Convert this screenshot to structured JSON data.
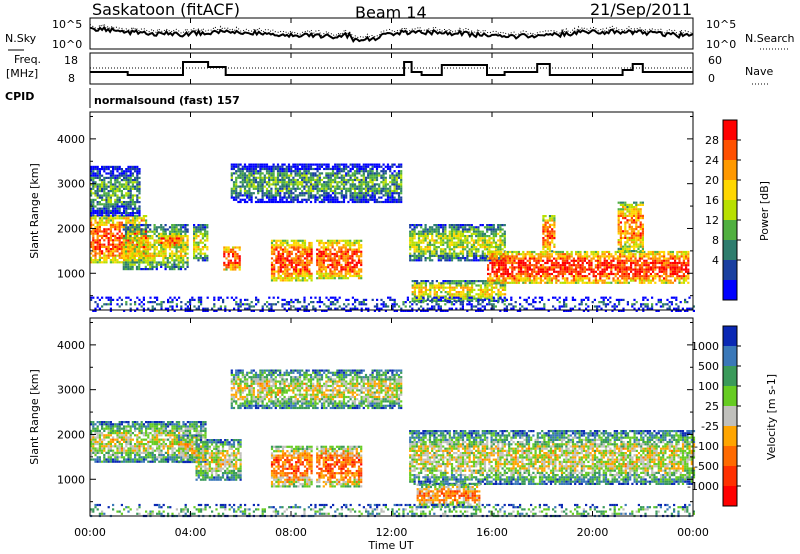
{
  "header": {
    "station": "Saskatoon (fitACF)",
    "beam": "Beam 14",
    "date": "21/Sep/2011"
  },
  "noise_panel": {
    "left_label": "N.Sky",
    "left_ticks": [
      "10^5",
      "10^0"
    ],
    "right_label": "N.Search",
    "right_ticks": [
      "10^5",
      "10^0"
    ]
  },
  "freq_panel": {
    "left_label_1": "Freq.",
    "left_label_2": "[MHz]",
    "left_ticks": [
      "18",
      "8"
    ],
    "right_label": "Nave",
    "right_ticks": [
      "60",
      "0"
    ]
  },
  "cpid": {
    "label": "CPID",
    "value": "normalsound (fast) 157"
  },
  "x_axis": {
    "label": "Time UT",
    "ticks": [
      "00:00",
      "04:00",
      "08:00",
      "12:00",
      "16:00",
      "20:00",
      "00:00"
    ]
  },
  "colors": {
    "frame": "#000000",
    "gray_scatter": "#c0c0bc"
  },
  "chart_data": [
    {
      "type": "heatmap",
      "name": "power",
      "ylabel": "Slant Range [km]",
      "yticks": [
        "4000",
        "3000",
        "2000",
        "1000"
      ],
      "ylim": [
        180,
        4600
      ],
      "xlim_hours": [
        0,
        24
      ],
      "colorbar": {
        "label": "Power [dB]",
        "ticks": [
          "28",
          "24",
          "20",
          "16",
          "12",
          "8",
          "4"
        ],
        "colors": [
          "#ff0000",
          "#ff5000",
          "#ff9900",
          "#ffd700",
          "#b8e000",
          "#50b040",
          "#2e7d6e",
          "#1a3fa0",
          "#0000ff"
        ]
      },
      "regions": [
        {
          "t": [
            0.0,
            2.2
          ],
          "r": [
            1250,
            2300
          ],
          "level": 0.85
        },
        {
          "t": [
            0.0,
            2.0
          ],
          "r": [
            2300,
            3400
          ],
          "level": 0.35
        },
        {
          "t": [
            1.3,
            3.9
          ],
          "r": [
            1100,
            2100
          ],
          "level": 0.55
        },
        {
          "t": [
            2.8,
            3.6
          ],
          "r": [
            1600,
            1900
          ],
          "level": 0.8
        },
        {
          "t": [
            4.1,
            4.7
          ],
          "r": [
            1300,
            2100
          ],
          "level": 0.55
        },
        {
          "t": [
            5.3,
            6.0
          ],
          "r": [
            1100,
            1600
          ],
          "level": 0.9
        },
        {
          "t": [
            5.6,
            12.4
          ],
          "r": [
            2600,
            3450
          ],
          "level": 0.35
        },
        {
          "t": [
            7.2,
            8.8
          ],
          "r": [
            850,
            1750
          ],
          "level": 0.85
        },
        {
          "t": [
            9.0,
            10.8
          ],
          "r": [
            900,
            1750
          ],
          "level": 0.85
        },
        {
          "t": [
            12.7,
            16.5
          ],
          "r": [
            1300,
            2100
          ],
          "level": 0.5
        },
        {
          "t": [
            12.8,
            16.5
          ],
          "r": [
            400,
            850
          ],
          "level": 0.6
        },
        {
          "t": [
            15.8,
            23.8
          ],
          "r": [
            800,
            1500
          ],
          "level": 0.9
        },
        {
          "t": [
            18.0,
            18.5
          ],
          "r": [
            1500,
            2300
          ],
          "level": 0.8
        },
        {
          "t": [
            21.0,
            22.0
          ],
          "r": [
            1500,
            2600
          ],
          "level": 0.75
        },
        {
          "t": [
            0.0,
            24.0
          ],
          "r": [
            180,
            480
          ],
          "level": 0.2
        }
      ]
    },
    {
      "type": "heatmap",
      "name": "velocity",
      "ylabel": "Slant Range [km]",
      "yticks": [
        "4000",
        "3000",
        "2000",
        "1000"
      ],
      "ylim": [
        180,
        4600
      ],
      "xlim_hours": [
        0,
        24
      ],
      "colorbar": {
        "label": "Velocity [m s-1]",
        "ticks": [
          "1000",
          "500",
          "100",
          "25",
          "-25",
          "-100",
          "-500",
          "-1000"
        ],
        "colors": [
          "#0a28b4",
          "#3a78b8",
          "#3a9a5a",
          "#66cc22",
          "#c0c0bc",
          "#ffa500",
          "#ff6a00",
          "#ff3000",
          "#ff0000"
        ]
      },
      "regions": [
        {
          "t": [
            0.0,
            4.6
          ],
          "r": [
            1400,
            2300
          ],
          "level": 0.5
        },
        {
          "t": [
            3.5,
            4.4
          ],
          "r": [
            1400,
            2000
          ],
          "level": 0.55
        },
        {
          "t": [
            4.2,
            6.0
          ],
          "r": [
            1000,
            1900
          ],
          "level": 0.5
        },
        {
          "t": [
            5.6,
            12.4
          ],
          "r": [
            2600,
            3450
          ],
          "level": 0.5
        },
        {
          "t": [
            7.2,
            8.8
          ],
          "r": [
            850,
            1750
          ],
          "level": 0.73
        },
        {
          "t": [
            9.0,
            10.8
          ],
          "r": [
            850,
            1750
          ],
          "level": 0.75
        },
        {
          "t": [
            12.7,
            24.0
          ],
          "r": [
            900,
            2100
          ],
          "level": 0.5
        },
        {
          "t": [
            13.0,
            15.5
          ],
          "r": [
            400,
            900
          ],
          "level": 0.68
        },
        {
          "t": [
            0.0,
            24.0
          ],
          "r": [
            180,
            450
          ],
          "level": 0.35
        }
      ]
    }
  ]
}
